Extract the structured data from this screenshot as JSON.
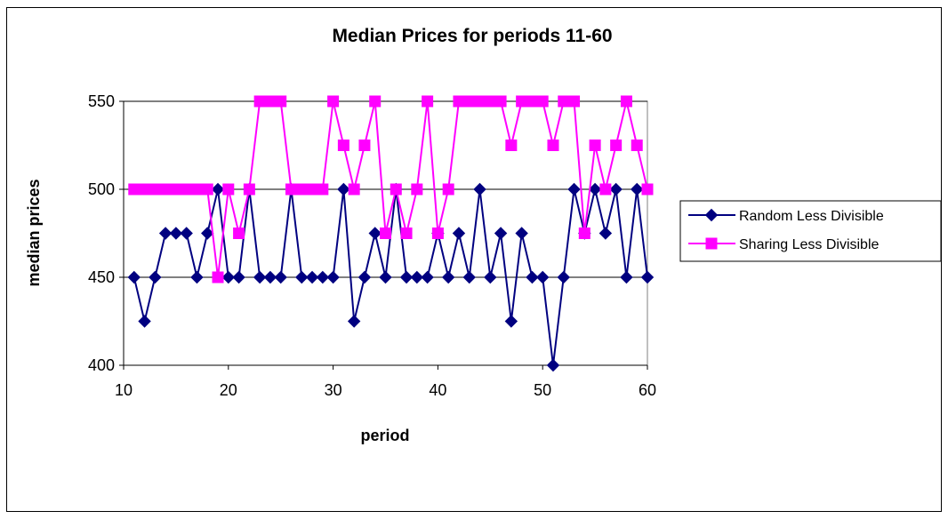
{
  "chart_data": {
    "type": "line",
    "title": "Median Prices for periods 11-60",
    "xlabel": "period",
    "ylabel": "median prices",
    "xlim": [
      10,
      60
    ],
    "ylim": [
      400,
      550
    ],
    "xticks": [
      "10",
      "20",
      "30",
      "40",
      "50",
      "60"
    ],
    "yticks": [
      "400",
      "450",
      "500",
      "550"
    ],
    "grid": "horizontal",
    "legend_position": "right",
    "x": [
      11,
      12,
      13,
      14,
      15,
      16,
      17,
      18,
      19,
      20,
      21,
      22,
      23,
      24,
      25,
      26,
      27,
      28,
      29,
      30,
      31,
      32,
      33,
      34,
      35,
      36,
      37,
      38,
      39,
      40,
      41,
      42,
      43,
      44,
      45,
      46,
      47,
      48,
      49,
      50,
      51,
      52,
      53,
      54,
      55,
      56,
      57,
      58,
      59,
      60
    ],
    "series": [
      {
        "name": "Random Less Divisible",
        "color": "#000080",
        "marker": "diamond",
        "values": [
          450,
          425,
          450,
          475,
          475,
          475,
          450,
          475,
          500,
          450,
          450,
          500,
          450,
          450,
          450,
          500,
          450,
          450,
          450,
          450,
          500,
          425,
          450,
          475,
          450,
          500,
          450,
          450,
          450,
          475,
          450,
          475,
          450,
          500,
          450,
          475,
          425,
          475,
          450,
          450,
          400,
          450,
          500,
          475,
          500,
          475,
          500,
          450,
          500,
          450
        ]
      },
      {
        "name": "Sharing Less Divisible",
        "color": "#ff00ff",
        "marker": "square",
        "values": [
          500,
          500,
          500,
          500,
          500,
          500,
          500,
          500,
          450,
          500,
          475,
          500,
          550,
          550,
          550,
          500,
          500,
          500,
          500,
          550,
          525,
          500,
          525,
          550,
          475,
          500,
          475,
          500,
          550,
          475,
          500,
          550,
          550,
          550,
          550,
          550,
          525,
          550,
          550,
          550,
          525,
          550,
          550,
          475,
          525,
          500,
          525,
          550,
          525,
          500
        ]
      }
    ]
  }
}
